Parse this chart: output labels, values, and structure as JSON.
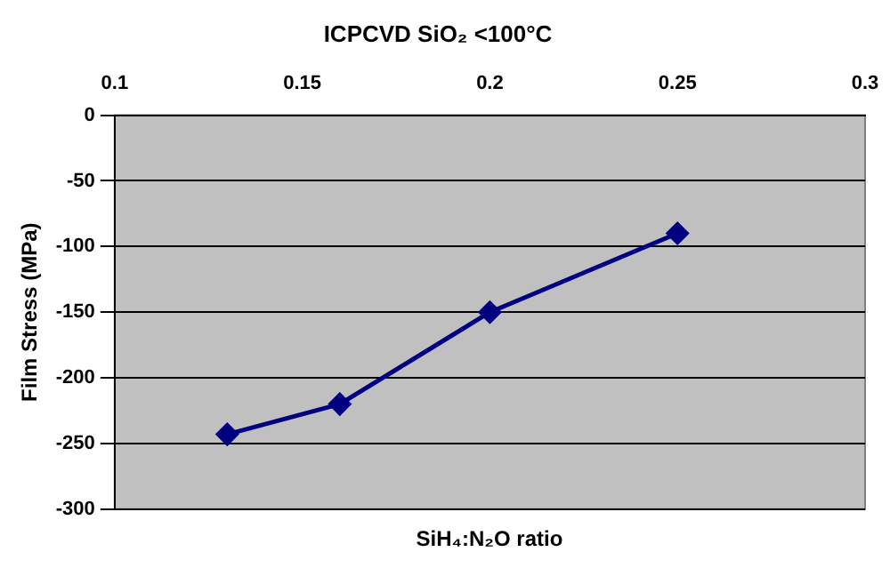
{
  "chart_data": {
    "type": "line",
    "title": "ICPCVD SiO₂ <100°C",
    "xlabel": "SiH₄:N₂O ratio",
    "ylabel": "Film Stress (MPa)",
    "x": [
      0.13,
      0.16,
      0.2,
      0.25
    ],
    "series": [
      {
        "color": "#000080",
        "values": [
          -243,
          -220,
          -150,
          -90
        ]
      }
    ],
    "xlim": [
      0.1,
      0.3
    ],
    "xticks": [
      0.1,
      0.15,
      0.2,
      0.25,
      0.3
    ],
    "ylim": [
      -300,
      0
    ],
    "yticks": [
      0,
      -50,
      -100,
      -150,
      -200,
      -250,
      -300
    ],
    "grid": "y",
    "legend": false,
    "marker": "diamond",
    "line_style": "solid"
  }
}
